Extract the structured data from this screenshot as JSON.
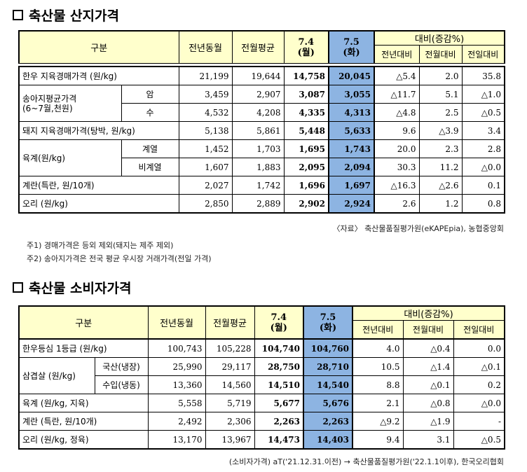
{
  "section1": {
    "title": "축산물 산지가격",
    "header": {
      "category": "구분",
      "prev_year": "전년동월",
      "prev_month_avg": "전월평균",
      "day1": "7.4",
      "day1_w": "(월)",
      "day2": "7.5",
      "day2_w": "(화)",
      "compare": "대비(증감%)",
      "vs_year": "전년대비",
      "vs_month": "전월대비",
      "vs_day": "전일대비"
    },
    "rows": [
      {
        "label": "한우 지육경매가격 (원/kg)",
        "sub": "",
        "v": [
          "21,199",
          "19,644",
          "14,758",
          "20,045",
          "△5.4",
          "2.0",
          "35.8"
        ]
      },
      {
        "label": "송아지평균가격\n(6~7월,천원)",
        "sub": "암",
        "v": [
          "3,459",
          "2,907",
          "3,087",
          "3,055",
          "△11.7",
          "5.1",
          "△1.0"
        ]
      },
      {
        "label": "",
        "sub": "수",
        "v": [
          "4,532",
          "4,208",
          "4,335",
          "4,313",
          "△4.8",
          "2.5",
          "△0.5"
        ]
      },
      {
        "label": "돼지 지육경매가격(탕박, 원/kg)",
        "sub": "",
        "v": [
          "5,138",
          "5,861",
          "5,448",
          "5,633",
          "9.6",
          "△3.9",
          "3.4"
        ]
      },
      {
        "label": "육계(원/kg)",
        "sub": "계열",
        "v": [
          "1,452",
          "1,703",
          "1,695",
          "1,743",
          "20.0",
          "2.3",
          "2.8"
        ]
      },
      {
        "label": "",
        "sub": "비계열",
        "v": [
          "1,607",
          "1,883",
          "2,095",
          "2,094",
          "30.3",
          "11.2",
          "△0.0"
        ]
      },
      {
        "label": "계란(특란, 원/10개)",
        "sub": "",
        "v": [
          "2,027",
          "1,742",
          "1,696",
          "1,697",
          "△16.3",
          "△2.6",
          "0.1"
        ]
      },
      {
        "label": "오리 (원/kg)",
        "sub": "",
        "v": [
          "2,850",
          "2,889",
          "2,902",
          "2,924",
          "2.6",
          "1.2",
          "0.8"
        ]
      }
    ],
    "source": "〈자료〉 축산물품질평가원(eKAPEpia), 농협중앙회",
    "notes": [
      "주1) 경매가격은 등외 제외(돼지는 제주 제외)",
      "주2) 송아지가격은 전국 평균 우시장 거래가격(전일 가격)"
    ]
  },
  "section2": {
    "title": "축산물 소비자가격",
    "header": {
      "category": "구분",
      "prev_year": "전년동월",
      "prev_month_avg": "전월평균",
      "day1": "7.4",
      "day1_w": "(월)",
      "day2": "7.5",
      "day2_w": "(화)",
      "compare": "대비(증감%)",
      "vs_year": "전년대비",
      "vs_month": "전월대비",
      "vs_day": "전일대비"
    },
    "rows": [
      {
        "label": "한우등심 1등급 (원/kg)",
        "sub": "",
        "v": [
          "100,743",
          "105,228",
          "104,740",
          "104,760",
          "4.0",
          "△0.4",
          "0.0"
        ]
      },
      {
        "label": "삼겹살 (원/kg)",
        "sub": "국산(냉장)",
        "v": [
          "25,990",
          "29,117",
          "28,750",
          "28,710",
          "10.5",
          "△1.4",
          "△0.1"
        ]
      },
      {
        "label": "",
        "sub": "수입(냉동)",
        "v": [
          "13,360",
          "14,560",
          "14,510",
          "14,540",
          "8.8",
          "△0.1",
          "0.2"
        ]
      },
      {
        "label": "육계 (원/kg, 지육)",
        "sub": "",
        "v": [
          "5,558",
          "5,719",
          "5,677",
          "5,676",
          "2.1",
          "△0.8",
          "△0.0"
        ]
      },
      {
        "label": "계란 (특란, 원/10개)",
        "sub": "",
        "v": [
          "2,492",
          "2,306",
          "2,263",
          "2,263",
          "△9.2",
          "△1.9",
          "-"
        ]
      },
      {
        "label": "오리 (원/kg, 정육)",
        "sub": "",
        "v": [
          "13,170",
          "13,967",
          "14,473",
          "14,403",
          "9.4",
          "3.1",
          "△0.5"
        ]
      }
    ],
    "source": "(소비자가격) aT('21.12.31.이전) → 축산물품질평가원('22.1.1이후), 한국오리협회"
  }
}
